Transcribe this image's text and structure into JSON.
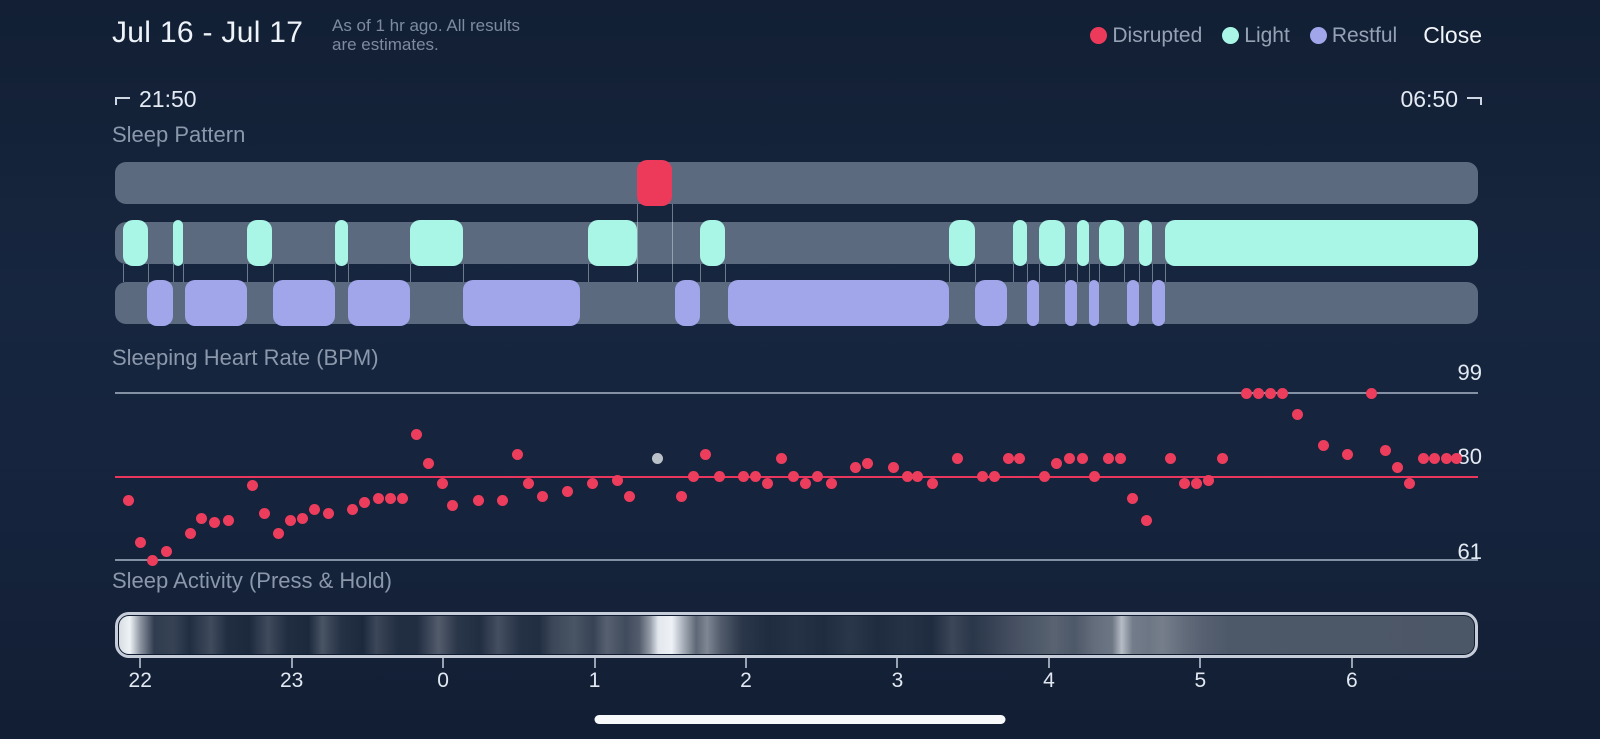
{
  "header": {
    "title": "Jul 16 - Jul 17",
    "subtitle_line1": "As of 1 hr ago. All results",
    "subtitle_line2": "are estimates.",
    "legend": [
      {
        "label": "Disrupted",
        "color": "#ee3a5a"
      },
      {
        "label": "Light",
        "color": "#a9f6e6"
      },
      {
        "label": "Restful",
        "color": "#a1a6eb"
      }
    ],
    "close_label": "Close"
  },
  "time_range": {
    "start": "21:50",
    "end": "06:50"
  },
  "sections": {
    "pattern_title": "Sleep Pattern",
    "heart_title": "Sleeping Heart Rate (BPM)",
    "activity_title": "Sleep Activity (Press & Hold)"
  },
  "colors": {
    "track": "#5c6a7f",
    "disrupted": "#ee3a5a",
    "light": "#a9f6e6",
    "restful": "#a1a6eb",
    "hr_dot": "#ed3d5d",
    "hr_gray_dot": "#bac1c9",
    "hr_baseline": "#e8365c",
    "grid": "#8491a5"
  },
  "chart_data": [
    {
      "name": "sleep_pattern",
      "type": "timeline",
      "title": "Sleep Pattern",
      "x_unit": "hours_after_21:50",
      "x_range": [
        0,
        9
      ],
      "series": [
        {
          "name": "Disrupted",
          "segments": [
            [
              3.45,
              3.68
            ]
          ]
        },
        {
          "name": "Light",
          "segments": [
            [
              0.05,
              0.22
            ],
            [
              0.38,
              0.45
            ],
            [
              0.87,
              1.04
            ],
            [
              1.45,
              1.54
            ],
            [
              1.95,
              2.3
            ],
            [
              3.12,
              3.45
            ],
            [
              3.86,
              4.03
            ],
            [
              5.51,
              5.68
            ],
            [
              5.93,
              6.02
            ],
            [
              6.1,
              6.27
            ],
            [
              6.35,
              6.43
            ],
            [
              6.5,
              6.66
            ],
            [
              6.76,
              6.85
            ],
            [
              6.93,
              9.0
            ]
          ]
        },
        {
          "name": "Restful",
          "segments": [
            [
              0.21,
              0.38
            ],
            [
              0.46,
              0.87
            ],
            [
              1.04,
              1.45
            ],
            [
              1.54,
              1.95
            ],
            [
              2.3,
              3.07
            ],
            [
              3.7,
              3.86
            ],
            [
              4.05,
              5.51
            ],
            [
              5.68,
              5.89
            ],
            [
              6.02,
              6.1
            ],
            [
              6.27,
              6.35
            ],
            [
              6.43,
              6.5
            ],
            [
              6.68,
              6.76
            ],
            [
              6.85,
              6.93
            ]
          ]
        }
      ]
    },
    {
      "name": "sleeping_heart_rate",
      "type": "scatter",
      "title": "Sleeping Heart Rate (BPM)",
      "ylim": [
        61,
        99
      ],
      "yticks": [
        99,
        80,
        61
      ],
      "baseline_bpm": 80,
      "x_unit": "hours_after_21:50",
      "x_range": [
        0,
        9
      ],
      "gray_point_index": 33,
      "points": [
        [
          0.09,
          74.5
        ],
        [
          0.17,
          65
        ],
        [
          0.25,
          61
        ],
        [
          0.34,
          63
        ],
        [
          0.5,
          67
        ],
        [
          0.57,
          70.5
        ],
        [
          0.66,
          69.5
        ],
        [
          0.75,
          70
        ],
        [
          0.91,
          78
        ],
        [
          0.99,
          71.5
        ],
        [
          1.08,
          67
        ],
        [
          1.16,
          70
        ],
        [
          1.24,
          70.5
        ],
        [
          1.32,
          72.5
        ],
        [
          1.41,
          71.5
        ],
        [
          1.57,
          72.5
        ],
        [
          1.65,
          74
        ],
        [
          1.74,
          75
        ],
        [
          1.82,
          75
        ],
        [
          1.9,
          75
        ],
        [
          1.99,
          89.5
        ],
        [
          2.07,
          83
        ],
        [
          2.16,
          78.5
        ],
        [
          2.23,
          73.5
        ],
        [
          2.4,
          74.5
        ],
        [
          2.56,
          74.5
        ],
        [
          2.66,
          85
        ],
        [
          2.73,
          78.5
        ],
        [
          2.82,
          75.5
        ],
        [
          2.99,
          76.5
        ],
        [
          3.15,
          78.5
        ],
        [
          3.32,
          79
        ],
        [
          3.4,
          75.5
        ],
        [
          3.58,
          84
        ],
        [
          3.74,
          75.5
        ],
        [
          3.82,
          80
        ],
        [
          3.9,
          85
        ],
        [
          3.99,
          80
        ],
        [
          4.15,
          80
        ],
        [
          4.23,
          80
        ],
        [
          4.31,
          78.5
        ],
        [
          4.4,
          84
        ],
        [
          4.48,
          80
        ],
        [
          4.56,
          78.5
        ],
        [
          4.64,
          80
        ],
        [
          4.73,
          78.5
        ],
        [
          4.89,
          82
        ],
        [
          4.97,
          83
        ],
        [
          5.14,
          82
        ],
        [
          5.23,
          80
        ],
        [
          5.3,
          80
        ],
        [
          5.4,
          78.5
        ],
        [
          5.56,
          84
        ],
        [
          5.73,
          80
        ],
        [
          5.81,
          80
        ],
        [
          5.9,
          84
        ],
        [
          5.97,
          84
        ],
        [
          6.14,
          80
        ],
        [
          6.22,
          83
        ],
        [
          6.3,
          84
        ],
        [
          6.39,
          84
        ],
        [
          6.47,
          80
        ],
        [
          6.56,
          84
        ],
        [
          6.64,
          84
        ],
        [
          6.72,
          75
        ],
        [
          6.81,
          70
        ],
        [
          6.97,
          84
        ],
        [
          7.06,
          78.5
        ],
        [
          7.14,
          78.5
        ],
        [
          7.22,
          79
        ],
        [
          7.31,
          84
        ],
        [
          7.47,
          99
        ],
        [
          7.55,
          99
        ],
        [
          7.63,
          99
        ],
        [
          7.71,
          99
        ],
        [
          7.81,
          94
        ],
        [
          7.98,
          87
        ],
        [
          8.14,
          85
        ],
        [
          8.3,
          99
        ],
        [
          8.39,
          86
        ],
        [
          8.47,
          82
        ],
        [
          8.55,
          78.5
        ],
        [
          8.64,
          84
        ],
        [
          8.71,
          84
        ],
        [
          8.79,
          84
        ],
        [
          8.86,
          84
        ]
      ]
    },
    {
      "name": "sleep_activity",
      "type": "heatmap",
      "title": "Sleep Activity (Press & Hold)",
      "x_unit": "hours_after_21:50",
      "x_range": [
        0,
        9
      ],
      "axis_tick_labels": [
        "22",
        "23",
        "0",
        "1",
        "2",
        "3",
        "4",
        "5",
        "6"
      ],
      "axis_tick_offsets": [
        0.1667,
        1.1667,
        2.1667,
        3.1667,
        4.1667,
        5.1667,
        6.1667,
        7.1667,
        8.1667
      ],
      "intensity_stops": [
        [
          0,
          0.9
        ],
        [
          0.8,
          1
        ],
        [
          1.6,
          0.55
        ],
        [
          2.6,
          0.15
        ],
        [
          4,
          0.18
        ],
        [
          5.2,
          0.08
        ],
        [
          6.8,
          0.22
        ],
        [
          8,
          0.08
        ],
        [
          9.6,
          0.06
        ],
        [
          11,
          0.22
        ],
        [
          12.4,
          0.08
        ],
        [
          14,
          0.06
        ],
        [
          15,
          0.26
        ],
        [
          16.4,
          0.1
        ],
        [
          18,
          0.06
        ],
        [
          19,
          0.2
        ],
        [
          20.6,
          0.08
        ],
        [
          22,
          0.08
        ],
        [
          23.6,
          0.3
        ],
        [
          25,
          0.12
        ],
        [
          26.6,
          0.08
        ],
        [
          28,
          0.24
        ],
        [
          29.6,
          0.1
        ],
        [
          31,
          0.08
        ],
        [
          32,
          0.2
        ],
        [
          33.6,
          0.26
        ],
        [
          35,
          0.18
        ],
        [
          36,
          0.32
        ],
        [
          37.4,
          0.22
        ],
        [
          38.4,
          0.3
        ],
        [
          39.2,
          0.6
        ],
        [
          39.8,
          0.95
        ],
        [
          40.8,
          1
        ],
        [
          41.6,
          0.7
        ],
        [
          42.6,
          0.35
        ],
        [
          43.4,
          0.5
        ],
        [
          44.4,
          0.3
        ],
        [
          46,
          0.12
        ],
        [
          48,
          0.07
        ],
        [
          50,
          0.1
        ],
        [
          52,
          0.07
        ],
        [
          54,
          0.12
        ],
        [
          56,
          0.07
        ],
        [
          58,
          0.1
        ],
        [
          60,
          0.07
        ],
        [
          61.5,
          0.2
        ],
        [
          63,
          0.12
        ],
        [
          64.5,
          0.18
        ],
        [
          66,
          0.24
        ],
        [
          67.5,
          0.28
        ],
        [
          69,
          0.33
        ],
        [
          70.5,
          0.28
        ],
        [
          72,
          0.38
        ],
        [
          73.3,
          0.42
        ],
        [
          74,
          0.75
        ],
        [
          74.8,
          0.45
        ],
        [
          76,
          0.42
        ],
        [
          77,
          0.46
        ],
        [
          78.5,
          0.38
        ],
        [
          80,
          0.32
        ],
        [
          82,
          0.28
        ],
        [
          100,
          0.27
        ]
      ]
    }
  ]
}
